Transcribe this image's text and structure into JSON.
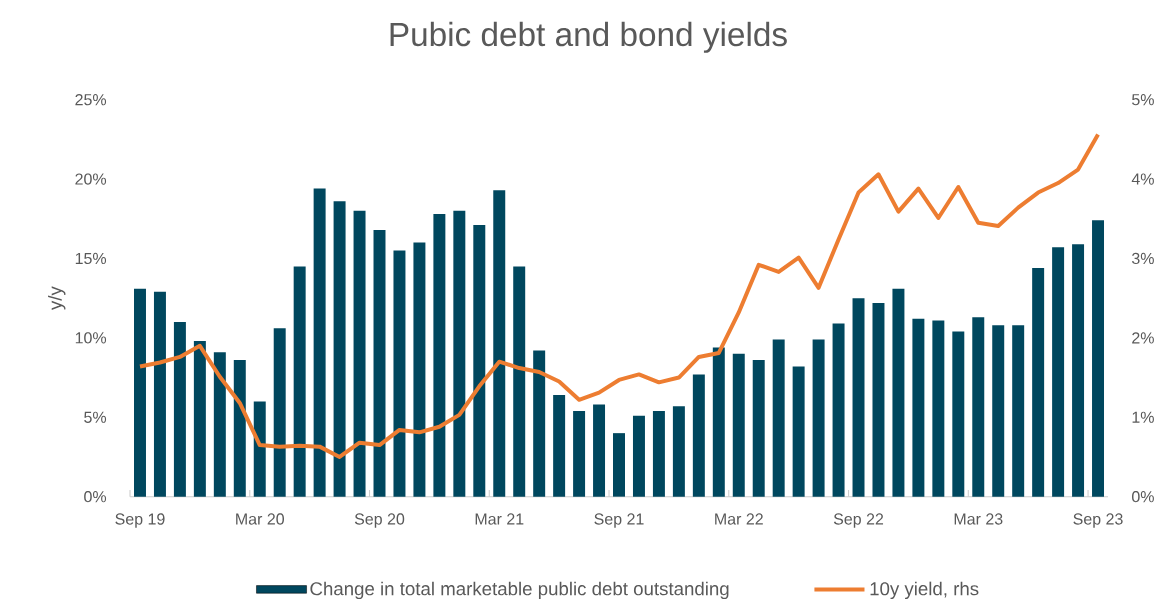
{
  "chart_data": {
    "type": "bar",
    "title": "Pubic debt and bond yields",
    "ylabel": "y/y",
    "categories": [
      "Sep 19",
      null,
      null,
      null,
      null,
      null,
      "Mar 20",
      null,
      null,
      null,
      null,
      null,
      "Sep 20",
      null,
      null,
      null,
      null,
      null,
      "Mar 21",
      null,
      null,
      null,
      null,
      null,
      "Sep 21",
      null,
      null,
      null,
      null,
      null,
      "Mar 22",
      null,
      null,
      null,
      null,
      null,
      "Sep 22",
      null,
      null,
      null,
      null,
      null,
      "Mar 23",
      null,
      null,
      null,
      null,
      null,
      "Sep 23"
    ],
    "series": [
      {
        "name": "Change in total marketable public debt outstanding",
        "color": "#00475e",
        "values": [
          13.1,
          12.9,
          11.0,
          9.8,
          9.1,
          8.6,
          6.0,
          10.6,
          14.5,
          19.4,
          18.6,
          18.0,
          16.8,
          15.5,
          16.0,
          17.8,
          18.0,
          17.1,
          19.3,
          14.5,
          9.2,
          6.4,
          5.4,
          5.8,
          4.0,
          5.1,
          5.4,
          5.7,
          7.7,
          9.4,
          9.0,
          8.6,
          9.9,
          8.2,
          9.9,
          10.9,
          12.5,
          12.2,
          13.1,
          11.2,
          11.1,
          10.4,
          11.3,
          10.8,
          10.8,
          14.4,
          15.7,
          15.9,
          17.4
        ]
      },
      {
        "name": "10y yield, rhs",
        "type": "line",
        "axis": "y2",
        "color": "#ed7d31",
        "values": [
          1.64,
          1.69,
          1.76,
          1.9,
          1.51,
          1.18,
          0.65,
          0.63,
          0.64,
          0.63,
          0.5,
          0.68,
          0.65,
          0.84,
          0.81,
          0.88,
          1.03,
          1.39,
          1.7,
          1.62,
          1.57,
          1.45,
          1.22,
          1.31,
          1.47,
          1.54,
          1.44,
          1.5,
          1.76,
          1.81,
          2.32,
          2.92,
          2.83,
          3.01,
          2.63,
          3.24,
          3.83,
          4.06,
          3.59,
          3.88,
          3.51,
          3.9,
          3.45,
          3.41,
          3.64,
          3.83,
          3.95,
          4.12,
          4.56
        ]
      }
    ],
    "ylim": [
      0,
      25
    ],
    "yticks": [
      {
        "value": 0,
        "label": "0%"
      },
      {
        "value": 5,
        "label": "5%"
      },
      {
        "value": 10,
        "label": "10%"
      },
      {
        "value": 15,
        "label": "15%"
      },
      {
        "value": 20,
        "label": "20%"
      },
      {
        "value": 25,
        "label": "25%"
      }
    ],
    "y2lim": [
      0,
      5
    ],
    "y2ticks": [
      {
        "value": 0,
        "label": "0%"
      },
      {
        "value": 1,
        "label": "1%"
      },
      {
        "value": 2,
        "label": "2%"
      },
      {
        "value": 3,
        "label": "3%"
      },
      {
        "value": 4,
        "label": "4%"
      },
      {
        "value": 5,
        "label": "5%"
      }
    ],
    "legend": "bottom"
  }
}
